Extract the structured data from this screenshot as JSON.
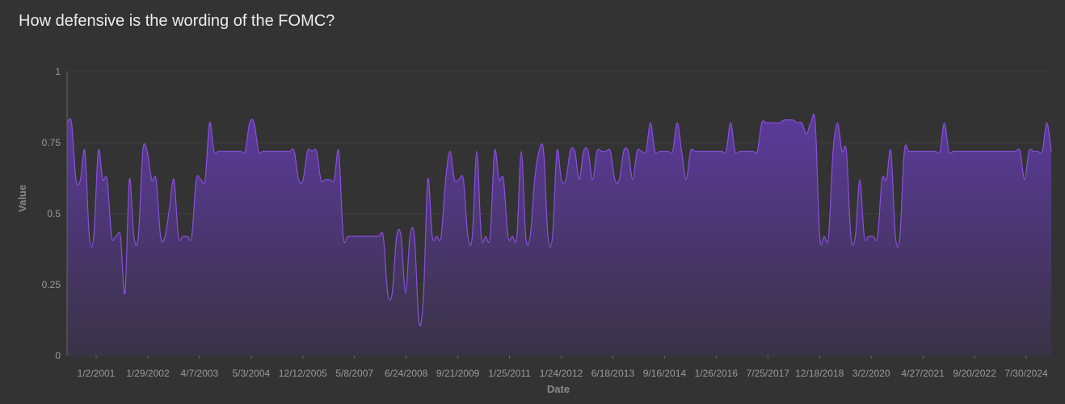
{
  "colors": {
    "background": "#333333",
    "line": "#8a4fe0",
    "fill_top": "#5c3a9c",
    "fill_bottom": "#393345",
    "grid": "#3f3f3f",
    "axis": "#666666"
  },
  "chart_data": {
    "type": "area",
    "title": "How defensive is the wording of the FOMC?",
    "xlabel": "Date",
    "ylabel": "Value",
    "ylim": [
      0,
      1
    ],
    "yticks": [
      0,
      0.25,
      0.5,
      0.75,
      1
    ],
    "ytick_labels": [
      "0",
      "0.25",
      "0.5",
      "0.75",
      "1"
    ],
    "x_tick_labels": [
      "1/2/2001",
      "1/29/2002",
      "4/7/2003",
      "5/3/2004",
      "12/12/2005",
      "5/8/2007",
      "6/24/2008",
      "9/21/2009",
      "1/25/2011",
      "1/24/2012",
      "6/18/2013",
      "9/16/2014",
      "1/26/2016",
      "7/25/2017",
      "12/18/2018",
      "3/2/2020",
      "4/27/2021",
      "9/20/2022",
      "7/30/2024"
    ],
    "grid": true,
    "series": [
      {
        "values": [
          0.82,
          0.82,
          0.62,
          0.62,
          0.72,
          0.42,
          0.42,
          0.72,
          0.62,
          0.62,
          0.42,
          0.42,
          0.42,
          0.22,
          0.62,
          0.42,
          0.42,
          0.72,
          0.72,
          0.62,
          0.62,
          0.42,
          0.42,
          0.52,
          0.62,
          0.42,
          0.42,
          0.42,
          0.42,
          0.62,
          0.62,
          0.62,
          0.82,
          0.72,
          0.72,
          0.72,
          0.72,
          0.72,
          0.72,
          0.72,
          0.72,
          0.82,
          0.82,
          0.72,
          0.72,
          0.72,
          0.72,
          0.72,
          0.72,
          0.72,
          0.72,
          0.72,
          0.62,
          0.62,
          0.72,
          0.72,
          0.72,
          0.62,
          0.62,
          0.62,
          0.62,
          0.72,
          0.42,
          0.42,
          0.42,
          0.42,
          0.42,
          0.42,
          0.42,
          0.42,
          0.42,
          0.42,
          0.22,
          0.22,
          0.42,
          0.42,
          0.22,
          0.42,
          0.42,
          0.12,
          0.2,
          0.62,
          0.42,
          0.42,
          0.42,
          0.62,
          0.72,
          0.62,
          0.62,
          0.62,
          0.42,
          0.42,
          0.72,
          0.42,
          0.42,
          0.42,
          0.72,
          0.62,
          0.62,
          0.42,
          0.42,
          0.42,
          0.72,
          0.42,
          0.42,
          0.62,
          0.72,
          0.72,
          0.42,
          0.42,
          0.72,
          0.62,
          0.62,
          0.72,
          0.72,
          0.62,
          0.72,
          0.72,
          0.62,
          0.72,
          0.72,
          0.72,
          0.72,
          0.62,
          0.62,
          0.72,
          0.72,
          0.62,
          0.72,
          0.72,
          0.72,
          0.82,
          0.72,
          0.72,
          0.72,
          0.72,
          0.72,
          0.82,
          0.72,
          0.62,
          0.72,
          0.72,
          0.72,
          0.72,
          0.72,
          0.72,
          0.72,
          0.72,
          0.72,
          0.82,
          0.72,
          0.72,
          0.72,
          0.72,
          0.72,
          0.72,
          0.82,
          0.82,
          0.82,
          0.82,
          0.82,
          0.83,
          0.83,
          0.83,
          0.82,
          0.82,
          0.78,
          0.82,
          0.82,
          0.42,
          0.42,
          0.42,
          0.72,
          0.82,
          0.72,
          0.72,
          0.42,
          0.42,
          0.62,
          0.42,
          0.42,
          0.42,
          0.42,
          0.62,
          0.62,
          0.72,
          0.42,
          0.42,
          0.72,
          0.72,
          0.72,
          0.72,
          0.72,
          0.72,
          0.72,
          0.72,
          0.72,
          0.82,
          0.72,
          0.72,
          0.72,
          0.72,
          0.72,
          0.72,
          0.72,
          0.72,
          0.72,
          0.72,
          0.72,
          0.72,
          0.72,
          0.72,
          0.72,
          0.72,
          0.72,
          0.62,
          0.72,
          0.72,
          0.72,
          0.72,
          0.82,
          0.72
        ]
      }
    ]
  }
}
